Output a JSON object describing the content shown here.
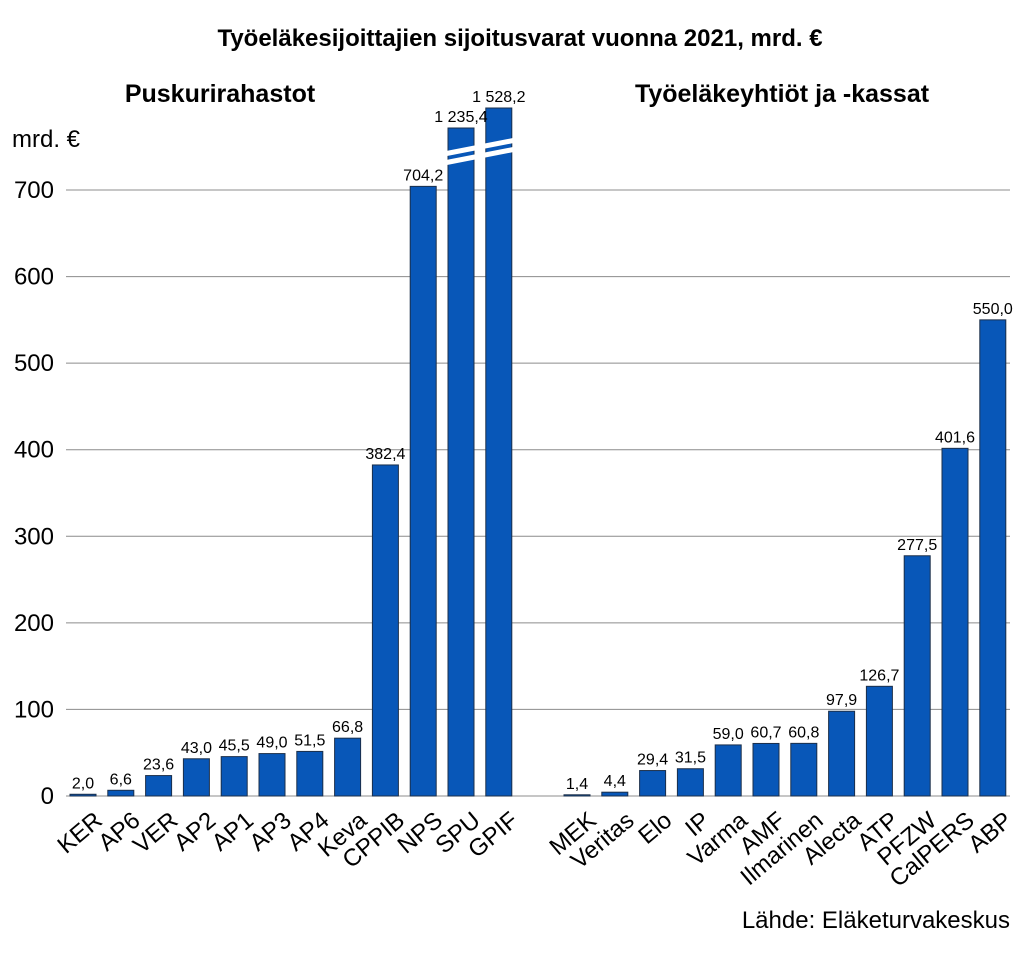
{
  "title": "Työeläkesijoittajien sijoitusvarat vuonna 2021, mrd. €",
  "unit_label": "mrd. €",
  "source": "Lähde: Eläketurvakeskus",
  "colors": {
    "bar": "#0857b8",
    "grid": "#8c8c8c"
  },
  "chart_data": {
    "type": "bar",
    "title": "Työeläkesijoittajien sijoitusvarat vuonna 2021, mrd. €",
    "ylabel": "mrd. €",
    "ylim": [
      0,
      750
    ],
    "yticks": [
      0,
      100,
      200,
      300,
      400,
      500,
      600,
      700
    ],
    "grid": true,
    "axis_break": "values above 700 are truncated (SPU, GPIF)",
    "panels": [
      {
        "title": "Puskurirahastot",
        "categories": [
          "KER",
          "AP6",
          "VER",
          "AP2",
          "AP1",
          "AP3",
          "AP4",
          "Keva",
          "CPPIB",
          "NPS",
          "SPU",
          "GPIF"
        ],
        "values": [
          2.0,
          6.6,
          23.6,
          43.0,
          45.5,
          49.0,
          51.5,
          66.8,
          382.4,
          704.2,
          1235.4,
          1528.2
        ],
        "labels": [
          "2,0",
          "6,6",
          "23,6",
          "43,0",
          "45,5",
          "49,0",
          "51,5",
          "66,8",
          "382,4",
          "704,2",
          "1 235,4",
          "1 528,2"
        ]
      },
      {
        "title": "Työeläkeyhtiöt ja -kassat",
        "categories": [
          "MEK",
          "Veritas",
          "Elo",
          "IP",
          "Varma",
          "AMF",
          "Ilmarinen",
          "Alecta",
          "ATP",
          "PFZW",
          "CalPERS",
          "ABP"
        ],
        "values": [
          1.4,
          4.4,
          29.4,
          31.5,
          59.0,
          60.7,
          60.8,
          97.9,
          126.7,
          277.5,
          401.6,
          550.0
        ],
        "labels": [
          "1,4",
          "4,4",
          "29,4",
          "31,5",
          "59,0",
          "60,7",
          "60,8",
          "97,9",
          "126,7",
          "277,5",
          "401,6",
          "550,0"
        ]
      }
    ]
  }
}
